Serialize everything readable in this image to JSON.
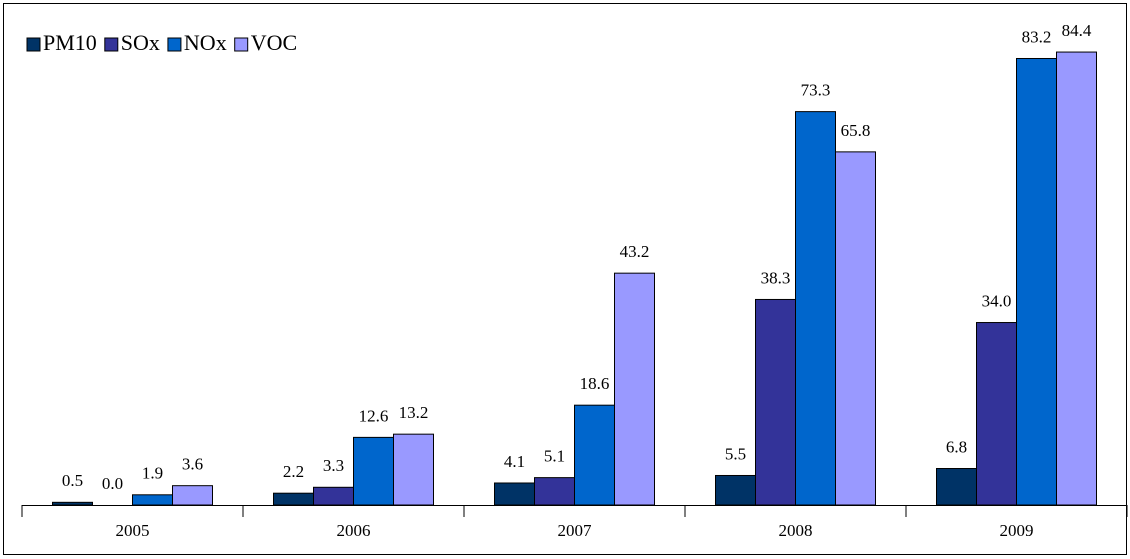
{
  "chart_data": {
    "type": "bar",
    "categories": [
      "2005",
      "2006",
      "2007",
      "2008",
      "2009"
    ],
    "series": [
      {
        "name": "PM10",
        "color": "#003366",
        "values": [
          0.5,
          2.2,
          4.1,
          5.5,
          6.8
        ],
        "value_labels": [
          "0.5",
          "2.2",
          "4.1",
          "5.5",
          "6.8"
        ]
      },
      {
        "name": "SOx",
        "color": "#333399",
        "values": [
          0,
          3.3,
          5.1,
          38.3,
          34
        ],
        "value_labels": [
          "0.0",
          "3.3",
          "5.1",
          "38.3",
          "34.0"
        ]
      },
      {
        "name": "NOx",
        "color": "#0066cc",
        "values": [
          1.9,
          12.6,
          18.6,
          73.3,
          83.2
        ],
        "value_labels": [
          "1.9",
          "12.6",
          "18.6",
          "73.3",
          "83.2"
        ]
      },
      {
        "name": "VOC",
        "color": "#9999ff",
        "values": [
          3.6,
          13.2,
          43.2,
          65.8,
          84.4
        ],
        "value_labels": [
          "3.6",
          "13.2",
          "43.2",
          "65.8",
          "84.4"
        ]
      }
    ],
    "ylim": [
      0,
      90
    ],
    "legend": "top-left"
  }
}
